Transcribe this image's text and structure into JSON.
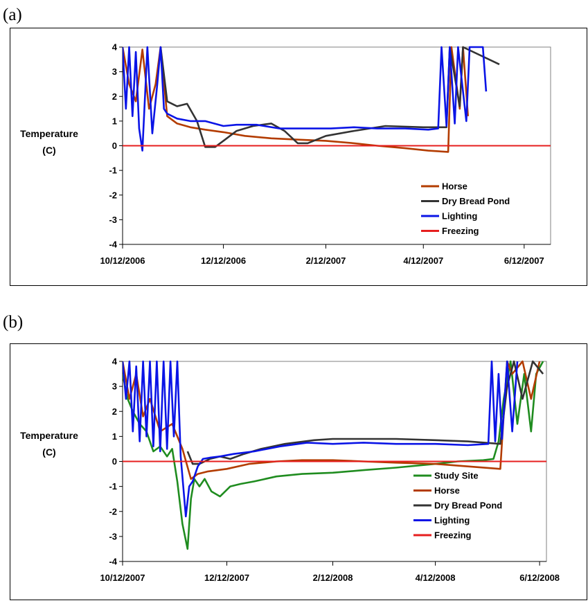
{
  "panels": [
    {
      "label": "(a)"
    },
    {
      "label": "(b)"
    }
  ],
  "chart_data": [
    {
      "type": "line",
      "panel": "(a)",
      "title": "",
      "xlabel": "",
      "ylabel": "Temperature (C)",
      "ylabel_lines": [
        "Temperature",
        "(C)"
      ],
      "xlim": [
        "2006-10-12",
        "2007-06-28"
      ],
      "ylim": [
        -4,
        4
      ],
      "yticks": [
        -4,
        -3,
        -2,
        -1,
        0,
        1,
        2,
        3,
        4
      ],
      "xtick_labels": [
        "10/12/2006",
        "12/12/2006",
        "2/12/2007",
        "4/12/2007",
        "6/12/2007"
      ],
      "xtick_dates": [
        "2006-10-12",
        "2006-12-12",
        "2007-02-12",
        "2007-04-12",
        "2007-06-12"
      ],
      "grid": false,
      "legend_position": "bottom-right",
      "series": [
        {
          "name": "Horse",
          "color": "#b33c00",
          "x": [
            "2006-10-12",
            "2006-10-16",
            "2006-10-20",
            "2006-10-24",
            "2006-10-28",
            "2006-11-01",
            "2006-11-04",
            "2006-11-08",
            "2006-11-14",
            "2006-11-22",
            "2006-12-01",
            "2006-12-12",
            "2006-12-25",
            "2007-01-10",
            "2007-01-25",
            "2007-02-12",
            "2007-03-01",
            "2007-03-15",
            "2007-04-01",
            "2007-04-15",
            "2007-04-27",
            "2007-04-29",
            "2007-05-04",
            "2007-05-06",
            "2007-05-09"
          ],
          "y": [
            4,
            2.5,
            1.8,
            3.9,
            1.5,
            2.5,
            4,
            1.2,
            0.9,
            0.75,
            0.65,
            0.55,
            0.4,
            0.3,
            0.25,
            0.2,
            0.1,
            0,
            -0.1,
            -0.2,
            -0.25,
            4,
            1.5,
            4,
            1.2
          ]
        },
        {
          "name": "Dry Bread Pond",
          "color": "#333333",
          "x": [
            "2006-11-04",
            "2006-11-08",
            "2006-11-14",
            "2006-11-20",
            "2006-11-26",
            "2006-12-01",
            "2006-12-07",
            "2006-12-12",
            "2006-12-20",
            "2006-12-30",
            "2007-01-10",
            "2007-01-18",
            "2007-01-26",
            "2007-02-01",
            "2007-02-12",
            "2007-03-01",
            "2007-03-20",
            "2007-04-12",
            "2007-04-26",
            "2007-04-28",
            "2007-05-04",
            "2007-05-06",
            "2007-05-28"
          ],
          "y": [
            4,
            1.8,
            1.6,
            1.7,
            1.0,
            -0.05,
            -0.05,
            0.2,
            0.6,
            0.8,
            0.9,
            0.6,
            0.1,
            0.1,
            0.4,
            0.6,
            0.8,
            0.75,
            0.75,
            4,
            1.6,
            4,
            3.3
          ]
        },
        {
          "name": "Lighting",
          "color": "#0a14e6",
          "x": [
            "2006-10-12",
            "2006-10-14",
            "2006-10-16",
            "2006-10-18",
            "2006-10-20",
            "2006-10-22",
            "2006-10-24",
            "2006-10-27",
            "2006-10-30",
            "2006-11-02",
            "2006-11-04",
            "2006-11-06",
            "2006-11-08",
            "2006-11-14",
            "2006-11-22",
            "2006-12-01",
            "2006-12-12",
            "2006-12-20",
            "2007-01-01",
            "2007-01-15",
            "2007-02-01",
            "2007-02-15",
            "2007-03-01",
            "2007-03-15",
            "2007-04-01",
            "2007-04-15",
            "2007-04-21",
            "2007-04-23",
            "2007-04-26",
            "2007-04-28",
            "2007-05-01",
            "2007-05-03",
            "2007-05-08",
            "2007-05-10",
            "2007-05-18",
            "2007-05-20"
          ],
          "y": [
            4,
            1.5,
            4,
            1.2,
            3.8,
            0.7,
            -0.2,
            4,
            0.5,
            2.5,
            4,
            1.5,
            1.3,
            1.1,
            1.0,
            1.0,
            0.8,
            0.85,
            0.85,
            0.7,
            0.7,
            0.7,
            0.75,
            0.7,
            0.7,
            0.65,
            0.7,
            4,
            0.8,
            4,
            0.9,
            4,
            1.0,
            4,
            4,
            2.2
          ]
        },
        {
          "name": "Freezing",
          "color": "#e61e1e",
          "x": [
            "2006-10-12",
            "2007-06-28"
          ],
          "y": [
            0,
            0
          ]
        }
      ]
    },
    {
      "type": "line",
      "panel": "(b)",
      "title": "",
      "xlabel": "",
      "ylabel": "Temperature (C)",
      "ylabel_lines": [
        "Temperature",
        "(C)"
      ],
      "xlim": [
        "2007-10-12",
        "2008-06-16"
      ],
      "ylim": [
        -4,
        4
      ],
      "yticks": [
        -4,
        -3,
        -2,
        -1,
        0,
        1,
        2,
        3,
        4
      ],
      "xtick_labels": [
        "10/12/2007",
        "12/12/2007",
        "2/12/2008",
        "4/12/2008",
        "6/12/2008"
      ],
      "xtick_dates": [
        "2007-10-12",
        "2007-12-12",
        "2008-02-12",
        "2008-04-12",
        "2008-06-12"
      ],
      "grid": false,
      "legend_position": "bottom-right",
      "series": [
        {
          "name": "Study Site",
          "color": "#1f8c1f",
          "x": [
            "2007-10-12",
            "2007-10-15",
            "2007-10-18",
            "2007-10-22",
            "2007-10-26",
            "2007-10-30",
            "2007-11-03",
            "2007-11-07",
            "2007-11-10",
            "2007-11-13",
            "2007-11-16",
            "2007-11-19",
            "2007-11-21",
            "2007-11-23",
            "2007-11-26",
            "2007-11-29",
            "2007-12-03",
            "2007-12-08",
            "2007-12-14",
            "2007-12-20",
            "2007-12-28",
            "2008-01-10",
            "2008-01-25",
            "2008-02-12",
            "2008-03-01",
            "2008-03-20",
            "2008-04-12",
            "2008-04-25",
            "2008-05-10",
            "2008-05-16",
            "2008-05-19",
            "2008-05-22",
            "2008-05-26",
            "2008-05-30",
            "2008-06-03",
            "2008-06-07",
            "2008-06-10",
            "2008-06-14"
          ],
          "y": [
            3.5,
            2.5,
            2.0,
            1.5,
            1.2,
            0.4,
            0.6,
            0.2,
            0.5,
            -0.8,
            -2.5,
            -3.5,
            -1.5,
            -0.7,
            -1.0,
            -0.7,
            -1.2,
            -1.4,
            -1.0,
            -0.9,
            -0.8,
            -0.6,
            -0.5,
            -0.45,
            -0.35,
            -0.25,
            -0.1,
            0.0,
            0.05,
            0.1,
            0.8,
            2.5,
            4,
            1.5,
            3.5,
            1.2,
            3.5,
            4
          ]
        },
        {
          "name": "Horse",
          "color": "#b33c00",
          "x": [
            "2007-10-12",
            "2007-10-16",
            "2007-10-20",
            "2007-10-24",
            "2007-10-28",
            "2007-11-03",
            "2007-11-10",
            "2007-11-16",
            "2007-11-21",
            "2007-11-25",
            "2007-12-01",
            "2007-12-12",
            "2007-12-25",
            "2008-01-10",
            "2008-01-25",
            "2008-02-12",
            "2008-03-01",
            "2008-03-20",
            "2008-04-12",
            "2008-05-01",
            "2008-05-20",
            "2008-05-24",
            "2008-05-27",
            "2008-06-02",
            "2008-06-07",
            "2008-06-12"
          ],
          "y": [
            4,
            2.5,
            3.5,
            1.8,
            2.5,
            1.2,
            1.5,
            0.5,
            -0.7,
            -0.5,
            -0.4,
            -0.3,
            -0.1,
            0,
            0.05,
            0.05,
            0,
            -0.05,
            -0.1,
            -0.2,
            -0.3,
            4,
            3.5,
            4,
            2.5,
            4
          ]
        },
        {
          "name": "Dry Bread Pond",
          "color": "#333333",
          "x": [
            "2007-11-19",
            "2007-11-22",
            "2007-11-26",
            "2007-12-02",
            "2007-12-08",
            "2007-12-14",
            "2007-12-22",
            "2008-01-01",
            "2008-01-15",
            "2008-02-01",
            "2008-02-12",
            "2008-03-01",
            "2008-03-20",
            "2008-04-12",
            "2008-05-01",
            "2008-05-20",
            "2008-05-24",
            "2008-05-28",
            "2008-06-02",
            "2008-06-08",
            "2008-06-14"
          ],
          "y": [
            0.4,
            -0.1,
            -0.1,
            0.1,
            0.2,
            0.1,
            0.3,
            0.5,
            0.7,
            0.85,
            0.9,
            0.9,
            0.9,
            0.85,
            0.8,
            0.7,
            3.0,
            4,
            2.5,
            4,
            3.5
          ]
        },
        {
          "name": "Lighting",
          "color": "#0a14e6",
          "x": [
            "2007-10-12",
            "2007-10-14",
            "2007-10-16",
            "2007-10-18",
            "2007-10-20",
            "2007-10-22",
            "2007-10-24",
            "2007-10-26",
            "2007-10-28",
            "2007-10-30",
            "2007-11-01",
            "2007-11-03",
            "2007-11-05",
            "2007-11-07",
            "2007-11-09",
            "2007-11-11",
            "2007-11-13",
            "2007-11-15",
            "2007-11-18",
            "2007-11-20",
            "2007-11-22",
            "2007-11-25",
            "2007-11-28",
            "2007-12-02",
            "2007-12-08",
            "2007-12-16",
            "2007-12-28",
            "2008-01-12",
            "2008-01-28",
            "2008-02-12",
            "2008-03-01",
            "2008-03-20",
            "2008-04-12",
            "2008-05-01",
            "2008-05-13",
            "2008-05-15",
            "2008-05-17",
            "2008-05-19",
            "2008-05-21",
            "2008-05-24",
            "2008-05-27",
            "2008-05-30"
          ],
          "y": [
            4,
            2.5,
            4,
            1.2,
            3.8,
            0.8,
            4,
            1.0,
            4,
            0.6,
            4,
            0.4,
            4,
            0.5,
            4,
            1.0,
            4,
            0.2,
            -2.2,
            -1.0,
            -0.8,
            -0.2,
            0.1,
            0.15,
            0.2,
            0.3,
            0.4,
            0.6,
            0.75,
            0.7,
            0.75,
            0.7,
            0.7,
            0.65,
            0.7,
            4,
            0.8,
            3.5,
            0.9,
            4,
            1.2,
            4
          ]
        },
        {
          "name": "Freezing",
          "color": "#e61e1e",
          "x": [
            "2007-10-12",
            "2008-06-16"
          ],
          "y": [
            0,
            0
          ]
        }
      ]
    }
  ]
}
